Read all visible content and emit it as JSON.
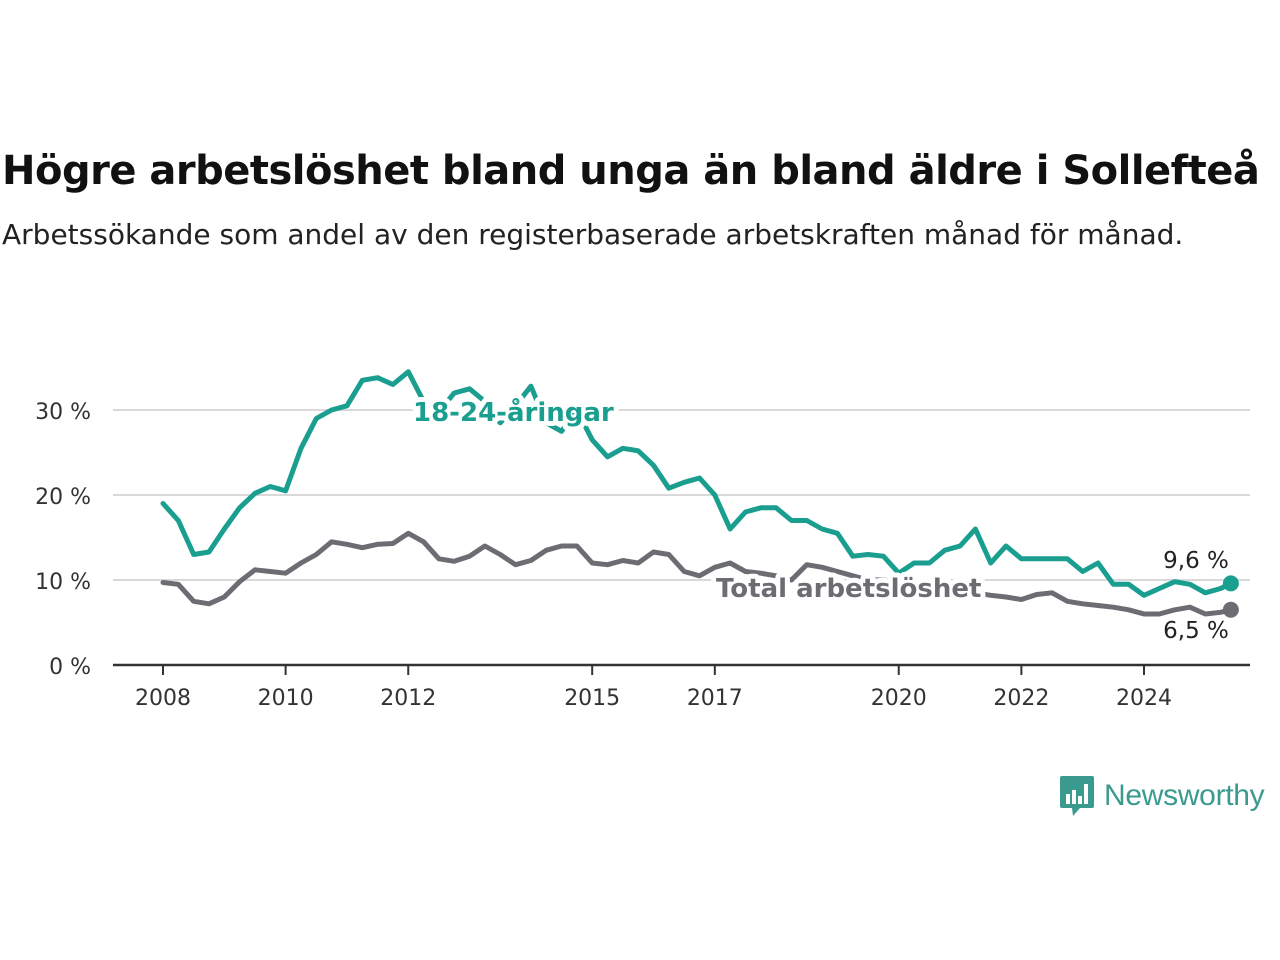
{
  "header": {
    "title": "Högre arbetslöshet bland unga än bland äldre i Sollefteå",
    "subtitle": "Arbetssökande som andel av den registerbaserade arbetskraften månad för månad."
  },
  "logo": {
    "text": "Newsworthy",
    "icon": "bar-chart-speech-bubble-icon",
    "color": "#3a9a8e"
  },
  "chart_data": {
    "type": "line",
    "x_range": [
      "2008-01",
      "2024-12"
    ],
    "ylim": [
      0,
      35
    ],
    "y_ticks": [
      0,
      10,
      20,
      30
    ],
    "y_tick_labels": [
      "0 %",
      "10 %",
      "20 %",
      "30 %"
    ],
    "x_ticks": [
      "2008",
      "2010",
      "2012",
      "2015",
      "2017",
      "2020",
      "2022",
      "2024"
    ],
    "grid": true,
    "series": [
      {
        "name": "18-24-åringar",
        "color": "#1a9e8f",
        "end_label": "9,6 %",
        "points": [
          [
            "2008-01",
            19.0
          ],
          [
            "2008-04",
            17.0
          ],
          [
            "2008-07",
            13.0
          ],
          [
            "2008-10",
            13.3
          ],
          [
            "2009-01",
            16.0
          ],
          [
            "2009-04",
            18.5
          ],
          [
            "2009-07",
            20.2
          ],
          [
            "2009-10",
            21.0
          ],
          [
            "2010-01",
            20.5
          ],
          [
            "2010-04",
            25.5
          ],
          [
            "2010-07",
            29.0
          ],
          [
            "2010-10",
            30.0
          ],
          [
            "2011-01",
            30.5
          ],
          [
            "2011-04",
            33.5
          ],
          [
            "2011-07",
            33.8
          ],
          [
            "2011-10",
            33.0
          ],
          [
            "2012-01",
            34.5
          ],
          [
            "2012-04",
            31.0
          ],
          [
            "2012-07",
            29.8
          ],
          [
            "2012-10",
            32.0
          ],
          [
            "2013-01",
            32.5
          ],
          [
            "2013-04",
            31.0
          ],
          [
            "2013-07",
            28.5
          ],
          [
            "2013-10",
            30.5
          ],
          [
            "2014-01",
            32.8
          ],
          [
            "2014-04",
            28.5
          ],
          [
            "2014-07",
            27.5
          ],
          [
            "2014-10",
            30.0
          ],
          [
            "2015-01",
            26.5
          ],
          [
            "2015-04",
            24.5
          ],
          [
            "2015-07",
            25.5
          ],
          [
            "2015-10",
            25.2
          ],
          [
            "2016-01",
            23.5
          ],
          [
            "2016-04",
            20.8
          ],
          [
            "2016-07",
            21.5
          ],
          [
            "2016-10",
            22.0
          ],
          [
            "2017-01",
            20.0
          ],
          [
            "2017-04",
            16.0
          ],
          [
            "2017-07",
            18.0
          ],
          [
            "2017-10",
            18.5
          ],
          [
            "2018-01",
            18.5
          ],
          [
            "2018-04",
            17.0
          ],
          [
            "2018-07",
            17.0
          ],
          [
            "2018-10",
            16.0
          ],
          [
            "2019-01",
            15.5
          ],
          [
            "2019-04",
            12.8
          ],
          [
            "2019-07",
            13.0
          ],
          [
            "2019-10",
            12.8
          ],
          [
            "2020-01",
            10.8
          ],
          [
            "2020-04",
            12.0
          ],
          [
            "2020-07",
            12.0
          ],
          [
            "2020-10",
            13.5
          ],
          [
            "2021-01",
            14.0
          ],
          [
            "2021-04",
            16.0
          ],
          [
            "2021-07",
            12.0
          ],
          [
            "2021-10",
            14.0
          ],
          [
            "2022-01",
            12.5
          ],
          [
            "2022-04",
            12.5
          ],
          [
            "2022-07",
            12.5
          ],
          [
            "2022-10",
            12.5
          ],
          [
            "2023-01",
            11.0
          ],
          [
            "2023-04",
            12.0
          ],
          [
            "2023-07",
            9.5
          ],
          [
            "2023-10",
            9.5
          ],
          [
            "2024-01",
            8.2
          ],
          [
            "2024-04",
            9.0
          ],
          [
            "2024-07",
            9.8
          ],
          [
            "2024-10",
            9.5
          ],
          [
            "2025-01",
            8.5
          ],
          [
            "2025-04",
            9.0
          ],
          [
            "2025-06",
            9.6
          ]
        ]
      },
      {
        "name": "Total arbetslöshet",
        "color": "#6e6c73",
        "end_label": "6,5 %",
        "points": [
          [
            "2008-01",
            9.7
          ],
          [
            "2008-04",
            9.5
          ],
          [
            "2008-07",
            7.5
          ],
          [
            "2008-10",
            7.2
          ],
          [
            "2009-01",
            8.0
          ],
          [
            "2009-04",
            9.8
          ],
          [
            "2009-07",
            11.2
          ],
          [
            "2009-10",
            11.0
          ],
          [
            "2010-01",
            10.8
          ],
          [
            "2010-04",
            12.0
          ],
          [
            "2010-07",
            13.0
          ],
          [
            "2010-10",
            14.5
          ],
          [
            "2011-01",
            14.2
          ],
          [
            "2011-04",
            13.8
          ],
          [
            "2011-07",
            14.2
          ],
          [
            "2011-10",
            14.3
          ],
          [
            "2012-01",
            15.5
          ],
          [
            "2012-04",
            14.5
          ],
          [
            "2012-07",
            12.5
          ],
          [
            "2012-10",
            12.2
          ],
          [
            "2013-01",
            12.8
          ],
          [
            "2013-04",
            14.0
          ],
          [
            "2013-07",
            13.0
          ],
          [
            "2013-10",
            11.8
          ],
          [
            "2014-01",
            12.3
          ],
          [
            "2014-04",
            13.5
          ],
          [
            "2014-07",
            14.0
          ],
          [
            "2014-10",
            14.0
          ],
          [
            "2015-01",
            12.0
          ],
          [
            "2015-04",
            11.8
          ],
          [
            "2015-07",
            12.3
          ],
          [
            "2015-10",
            12.0
          ],
          [
            "2016-01",
            13.3
          ],
          [
            "2016-04",
            13.0
          ],
          [
            "2016-07",
            11.0
          ],
          [
            "2016-10",
            10.5
          ],
          [
            "2017-01",
            11.5
          ],
          [
            "2017-04",
            12.0
          ],
          [
            "2017-07",
            11.0
          ],
          [
            "2017-10",
            10.8
          ],
          [
            "2018-01",
            10.5
          ],
          [
            "2018-04",
            10.0
          ],
          [
            "2018-07",
            11.8
          ],
          [
            "2018-10",
            11.5
          ],
          [
            "2019-01",
            11.0
          ],
          [
            "2019-04",
            10.5
          ],
          [
            "2019-07",
            10.0
          ],
          [
            "2019-10",
            10.0
          ],
          [
            "2020-01",
            9.8
          ],
          [
            "2020-04",
            9.5
          ],
          [
            "2020-07",
            9.5
          ],
          [
            "2020-10",
            9.0
          ],
          [
            "2021-01",
            8.7
          ],
          [
            "2021-04",
            8.5
          ],
          [
            "2021-07",
            8.2
          ],
          [
            "2021-10",
            8.0
          ],
          [
            "2022-01",
            7.7
          ],
          [
            "2022-04",
            8.3
          ],
          [
            "2022-07",
            8.5
          ],
          [
            "2022-10",
            7.5
          ],
          [
            "2023-01",
            7.2
          ],
          [
            "2023-04",
            7.0
          ],
          [
            "2023-07",
            6.8
          ],
          [
            "2023-10",
            6.5
          ],
          [
            "2024-01",
            6.0
          ],
          [
            "2024-04",
            6.0
          ],
          [
            "2024-07",
            6.5
          ],
          [
            "2024-10",
            6.8
          ],
          [
            "2025-01",
            6.0
          ],
          [
            "2025-04",
            6.2
          ],
          [
            "2025-06",
            6.5
          ]
        ]
      }
    ]
  }
}
